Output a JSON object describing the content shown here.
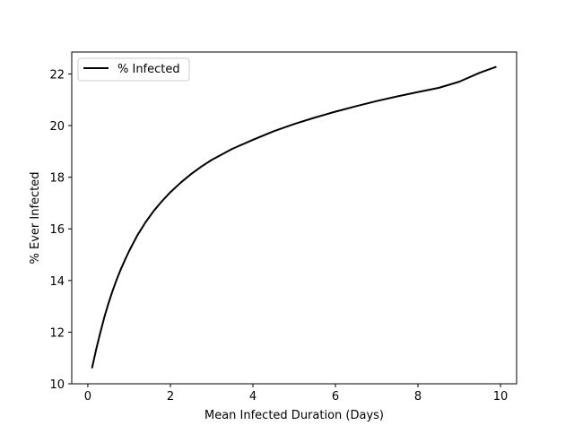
{
  "chart_data": {
    "type": "line",
    "title": "",
    "xlabel": "Mean Infected Duration (Days)",
    "ylabel": "% Ever Infected",
    "xlim": [
      -0.39,
      10.39
    ],
    "ylim": [
      10,
      22.85
    ],
    "x_ticks": [
      0,
      2,
      4,
      6,
      8,
      10
    ],
    "y_ticks": [
      10,
      12,
      14,
      16,
      18,
      20,
      22
    ],
    "grid": false,
    "legend_position": "top-left",
    "series": [
      {
        "name": "% Infected",
        "color": "#000000",
        "x": [
          0.1,
          0.2,
          0.3,
          0.4,
          0.5,
          0.6,
          0.7,
          0.8,
          0.9,
          1.0,
          1.2,
          1.4,
          1.6,
          1.8,
          2.0,
          2.25,
          2.5,
          2.75,
          3.0,
          3.5,
          4.0,
          4.5,
          5.0,
          5.5,
          6.0,
          6.5,
          7.0,
          7.5,
          8.0,
          8.5,
          9.0,
          9.5,
          9.9
        ],
        "y": [
          10.6,
          11.32,
          11.97,
          12.58,
          13.12,
          13.6,
          14.04,
          14.44,
          14.8,
          15.14,
          15.75,
          16.26,
          16.7,
          17.08,
          17.42,
          17.79,
          18.12,
          18.41,
          18.67,
          19.1,
          19.45,
          19.78,
          20.06,
          20.31,
          20.54,
          20.75,
          20.95,
          21.13,
          21.3,
          21.46,
          21.7,
          22.05,
          22.28
        ]
      }
    ]
  }
}
